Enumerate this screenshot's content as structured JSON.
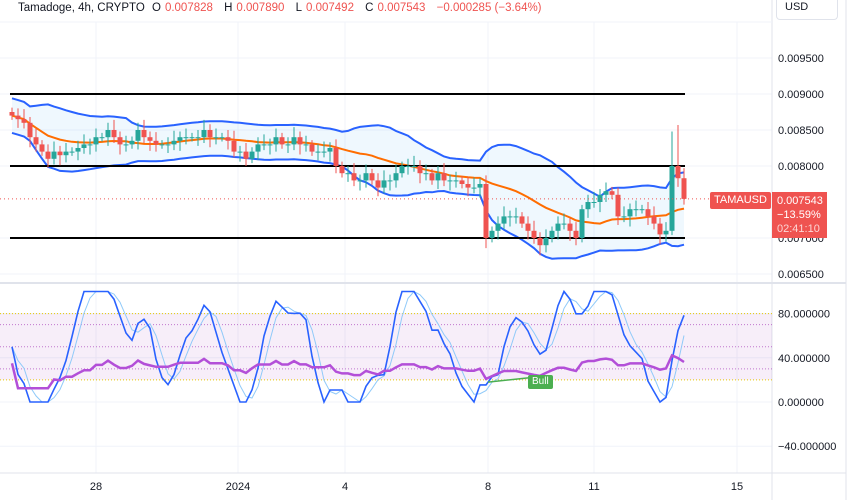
{
  "header": {
    "symbol": "Tamadoge, 4h, CRYPTO",
    "open_label": "O",
    "open": "0.007828",
    "high_label": "H",
    "high": "0.007890",
    "low_label": "L",
    "low": "0.007492",
    "close_label": "C",
    "close": "0.007543",
    "change": "−0.000285 (−3.64%)"
  },
  "currency": "USD",
  "price_axis": [
    "0.009500",
    "0.009000",
    "0.008500",
    "0.008000",
    "0.007000",
    "0.006500"
  ],
  "price_axis_values": [
    0.0095,
    0.009,
    0.0085,
    0.008,
    0.007,
    0.0065
  ],
  "indicator_axis": [
    "80.000000",
    "40.000000",
    "0.000000",
    "−40.000000"
  ],
  "indicator_axis_values": [
    80,
    40,
    0,
    -40
  ],
  "time_axis": [
    "28",
    "2024",
    "4",
    "8",
    "11",
    "15"
  ],
  "price_tag": {
    "symbol": "TAMAUSD",
    "price": "0.007543",
    "change": "−13.59%",
    "countdown": "02:41:10"
  },
  "horizontal_levels": [
    0.009,
    0.008,
    0.007
  ],
  "divergence_label": "Bull",
  "colors": {
    "up": "#26a69a",
    "down": "#ef5350",
    "bands": "#2962ff",
    "basis": "#ff6d00",
    "rsi": "#b34fd8",
    "stoch_k": "#2962ff",
    "stoch_d": "#90caf9",
    "levels": "#000000"
  },
  "chart_data": {
    "type": "candlestick",
    "closes": [
      0.0087,
      0.00865,
      0.0086,
      0.0084,
      0.0083,
      0.0082,
      0.0081,
      0.0082,
      0.00815,
      0.0082,
      0.0082,
      0.00825,
      0.0083,
      0.0083,
      0.0084,
      0.0084,
      0.0085,
      0.0084,
      0.0083,
      0.0083,
      0.00835,
      0.0085,
      0.0084,
      0.00835,
      0.0083,
      0.0083,
      0.0083,
      0.00835,
      0.0084,
      0.0084,
      0.0084,
      0.0084,
      0.0085,
      0.0084,
      0.0084,
      0.0084,
      0.00835,
      0.0082,
      0.0082,
      0.0081,
      0.0082,
      0.0083,
      0.0083,
      0.0083,
      0.0084,
      0.0083,
      0.0083,
      0.0084,
      0.0083,
      0.0083,
      0.0082,
      0.0082,
      0.0082,
      0.00825,
      0.008,
      0.0079,
      0.0079,
      0.0078,
      0.0078,
      0.0079,
      0.0078,
      0.0077,
      0.0078,
      0.0078,
      0.0079,
      0.008,
      0.008,
      0.008,
      0.0079,
      0.0079,
      0.0078,
      0.0079,
      0.0078,
      0.0078,
      0.0078,
      0.00775,
      0.0077,
      0.0077,
      0.00775,
      0.007,
      0.0071,
      0.0072,
      0.0073,
      0.0073,
      0.0073,
      0.0072,
      0.0071,
      0.007,
      0.0069,
      0.007,
      0.0071,
      0.0072,
      0.0072,
      0.0071,
      0.007,
      0.0074,
      0.0075,
      0.0075,
      0.0076,
      0.00765,
      0.0076,
      0.0073,
      0.0073,
      0.0074,
      0.0074,
      0.0074,
      0.0073,
      0.0072,
      0.00705,
      0.0071,
      0.008,
      0.00783,
      0.007543
    ],
    "y_range": [
      0.0062,
      0.0099
    ],
    "indicator_range": [
      -55,
      100
    ],
    "indicator_bands": [
      80,
      70,
      50,
      30,
      20
    ]
  }
}
